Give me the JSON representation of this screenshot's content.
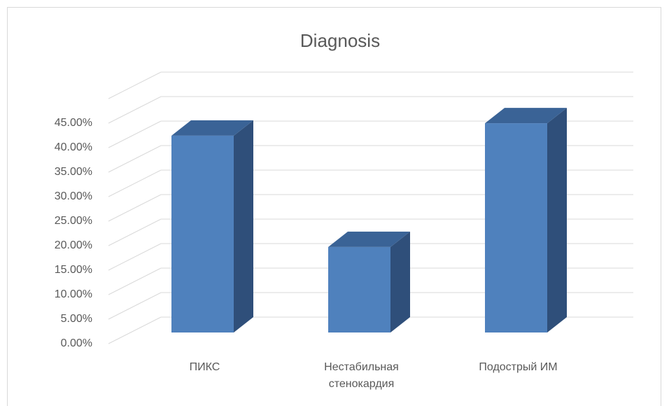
{
  "chart_data": {
    "type": "bar3d",
    "title": "Diagnosis",
    "categories": [
      "ПИКС",
      "Нестабильная стенокардия",
      "Подострый ИМ"
    ],
    "values": [
      39.6,
      17.2,
      42.1
    ],
    "color": "#4f81bd",
    "ylim": [
      0,
      50
    ],
    "yticks": [
      {
        "value": 0,
        "label": "0.00%"
      },
      {
        "value": 5,
        "label": "5.00%"
      },
      {
        "value": 10,
        "label": "10.00%"
      },
      {
        "value": 15,
        "label": "15.00%"
      },
      {
        "value": 20,
        "label": "20.00%"
      },
      {
        "value": 25,
        "label": "25.00%"
      },
      {
        "value": 30,
        "label": "30.00%"
      },
      {
        "value": 35,
        "label": "35.00%"
      },
      {
        "value": 40,
        "label": "40.00%"
      },
      {
        "value": 45,
        "label": "45.00%"
      }
    ],
    "grid": true
  }
}
